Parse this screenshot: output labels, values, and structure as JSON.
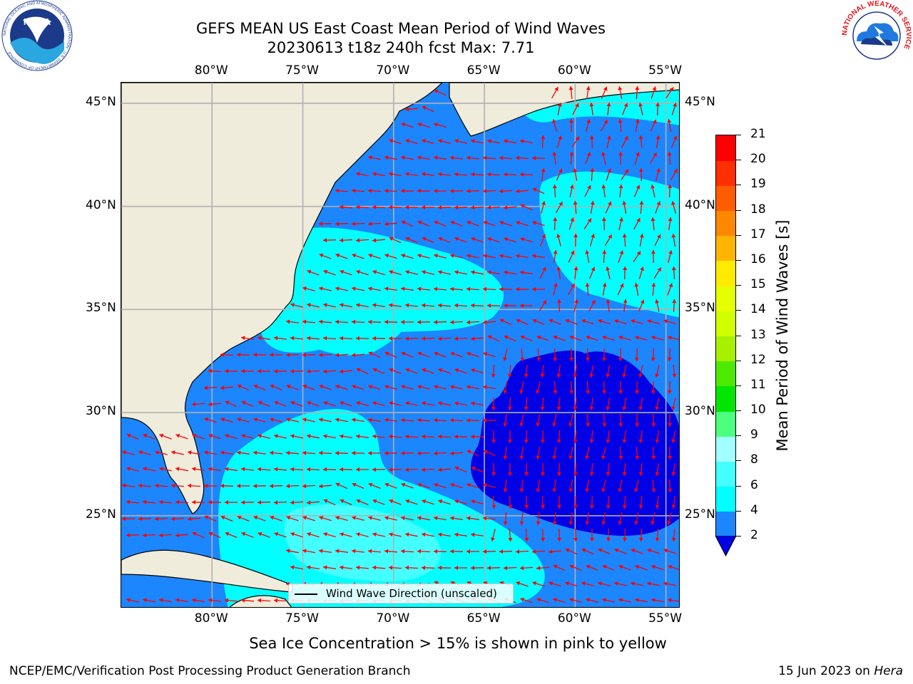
{
  "title": {
    "line1": "GEFS MEAN US East Coast Mean Period of Wind Waves",
    "line2": "20230613 t18z 240h fcst   Max: 7.71"
  },
  "map": {
    "lon_labels": [
      "80°W",
      "75°W",
      "70°W",
      "65°W",
      "60°W",
      "55°W"
    ],
    "lat_labels": [
      "45°N",
      "40°N",
      "35°N",
      "30°N",
      "25°N"
    ],
    "lon_range": [
      -85,
      -54.2
    ],
    "lat_range": [
      20.5,
      46
    ],
    "grid": true,
    "land_color": "#efecdc",
    "arrow_color": "#ff0000",
    "legend_label": "Wind Wave Direction (unscaled)"
  },
  "colorbar": {
    "label": "Mean Period of Wind Waves [s]",
    "ticks": [
      "2",
      "4",
      "6",
      "8",
      "9",
      "10",
      "11",
      "12",
      "13",
      "14",
      "15",
      "16",
      "17",
      "18",
      "19",
      "20",
      "21"
    ],
    "colors": [
      "#0000e6",
      "#1c86ff",
      "#00ffff",
      "#43ffff",
      "#a1ffff",
      "#4cff7f",
      "#00e600",
      "#4dea00",
      "#a6f000",
      "#d2ff00",
      "#e5ff00",
      "#ffeb00",
      "#ffb500",
      "#ff8800",
      "#ff5c00",
      "#ff2f00",
      "#ff0000"
    ]
  },
  "subtitle": "Sea Ice Concentration > 15% is shown in pink to yellow",
  "footer": {
    "left": "NCEP/EMC/Verification Post Processing Product Generation Branch",
    "right_date": "15 Jun 2023 on ",
    "right_machine": "Hera"
  },
  "logos": {
    "left": "NOAA",
    "left_ring": "NATIONAL OCEANIC AND ATMOSPHERIC ADMINISTRATION · U.S. DEPARTMENT OF COMMERCE",
    "right_ring": "NATIONAL WEATHER SERVICE"
  }
}
